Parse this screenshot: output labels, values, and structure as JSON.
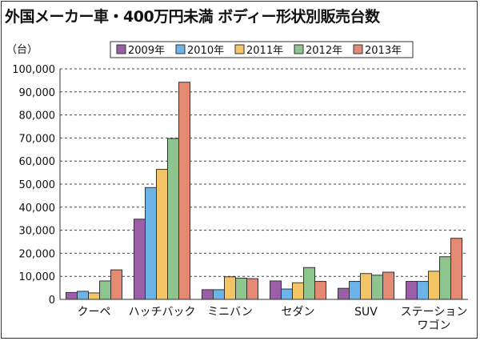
{
  "chart_data": {
    "type": "bar",
    "title": "外国メーカー車・400万円未満 ボディー形状別販売台数",
    "ylabel": "（台）",
    "xlabel": "",
    "ylim": [
      0,
      100000
    ],
    "yticks": [
      "0",
      "10,000",
      "20,000",
      "30,000",
      "40,000",
      "50,000",
      "60,000",
      "70,000",
      "80,000",
      "90,000",
      "100,000"
    ],
    "grid": "horizontal dashed",
    "legend_position": "top",
    "categories": [
      "クーペ",
      "ハッチバック",
      "ミニバン",
      "セダン",
      "SUV",
      "ステーション\nワゴン"
    ],
    "series": [
      {
        "name": "2009年",
        "color": "#9b5fa8",
        "values": [
          3000,
          34800,
          4200,
          8000,
          4800,
          7800
        ]
      },
      {
        "name": "2010年",
        "color": "#6cb4e8",
        "values": [
          3500,
          48500,
          4200,
          4500,
          7800,
          7800
        ]
      },
      {
        "name": "2011年",
        "color": "#f4c566",
        "values": [
          2800,
          56400,
          9800,
          7200,
          11200,
          12200
        ]
      },
      {
        "name": "2012年",
        "color": "#8ec48e",
        "values": [
          8000,
          69800,
          9200,
          13800,
          10500,
          18500
        ]
      },
      {
        "name": "2013年",
        "color": "#e48a72",
        "values": [
          12800,
          94200,
          9000,
          7800,
          11800,
          26500
        ]
      }
    ]
  }
}
